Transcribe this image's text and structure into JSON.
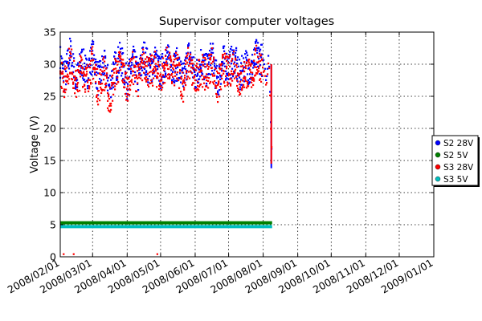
{
  "chart_data": {
    "type": "scatter",
    "title": "Supervisor computer voltages",
    "xlabel": "",
    "ylabel": "Voltage (V)",
    "ylim": [
      0,
      35
    ],
    "xlim": [
      "2008-02-01",
      "2009-01-01"
    ],
    "grid": true,
    "legend_position": "right-outside",
    "yticks": [
      "0",
      "5",
      "10",
      "15",
      "20",
      "25",
      "30",
      "35"
    ],
    "xticks": [
      {
        "date": "2008-02-01",
        "label": "2008/02/01"
      },
      {
        "date": "2008-03-01",
        "label": "2008/03/01"
      },
      {
        "date": "2008-04-01",
        "label": "2008/04/01"
      },
      {
        "date": "2008-05-01",
        "label": "2008/05/01"
      },
      {
        "date": "2008-06-01",
        "label": "2008/06/01"
      },
      {
        "date": "2008-07-01",
        "label": "2008/07/01"
      },
      {
        "date": "2008-08-01",
        "label": "2008/08/01"
      },
      {
        "date": "2008-09-01",
        "label": "2008/09/01"
      },
      {
        "date": "2008-10-01",
        "label": "2008/10/01"
      },
      {
        "date": "2008-11-01",
        "label": "2008/11/01"
      },
      {
        "date": "2008-12-01",
        "label": "2008/12/01"
      },
      {
        "date": "2009-01-01",
        "label": "2009/01/01"
      }
    ],
    "series": [
      {
        "name": "S2 28V",
        "color": "#0000ff",
        "x": [
          "2008-02-01",
          "2008-02-05",
          "2008-02-10",
          "2008-02-15",
          "2008-02-20",
          "2008-02-25",
          "2008-03-01",
          "2008-03-06",
          "2008-03-11",
          "2008-03-16",
          "2008-03-21",
          "2008-03-26",
          "2008-04-01",
          "2008-04-06",
          "2008-04-11",
          "2008-04-16",
          "2008-04-21",
          "2008-04-26",
          "2008-05-01",
          "2008-05-06",
          "2008-05-11",
          "2008-05-16",
          "2008-05-21",
          "2008-05-26",
          "2008-06-01",
          "2008-06-06",
          "2008-06-11",
          "2008-06-16",
          "2008-06-21",
          "2008-06-26",
          "2008-07-01",
          "2008-07-06",
          "2008-07-11",
          "2008-07-16",
          "2008-07-21",
          "2008-07-26",
          "2008-08-01",
          "2008-08-04",
          "2008-08-06",
          "2008-08-08",
          "2008-08-09"
        ],
        "y": [
          30.5,
          28.0,
          32.0,
          27.0,
          30.5,
          28.5,
          31.5,
          27.5,
          30.0,
          26.5,
          29.5,
          31.0,
          27.0,
          30.5,
          28.0,
          31.5,
          29.0,
          30.5,
          28.5,
          31.0,
          29.5,
          30.0,
          27.5,
          31.5,
          28.0,
          30.5,
          29.0,
          31.5,
          27.0,
          30.5,
          29.5,
          31.0,
          28.0,
          30.0,
          29.0,
          31.5,
          30.5,
          27.5,
          32.0,
          20.0,
          13.8
        ]
      },
      {
        "name": "S2 5V",
        "color": "#008000",
        "x": [
          "2008-02-01",
          "2008-08-09"
        ],
        "y": [
          5.3,
          5.3
        ]
      },
      {
        "name": "S3 28V",
        "color": "#ff0000",
        "x": [
          "2008-02-01",
          "2008-02-05",
          "2008-02-10",
          "2008-02-15",
          "2008-02-20",
          "2008-02-25",
          "2008-03-01",
          "2008-03-06",
          "2008-03-11",
          "2008-03-16",
          "2008-03-21",
          "2008-03-26",
          "2008-04-01",
          "2008-04-06",
          "2008-04-11",
          "2008-04-16",
          "2008-04-21",
          "2008-04-26",
          "2008-05-01",
          "2008-05-06",
          "2008-05-11",
          "2008-05-16",
          "2008-05-21",
          "2008-05-26",
          "2008-06-01",
          "2008-06-06",
          "2008-06-11",
          "2008-06-16",
          "2008-06-21",
          "2008-06-26",
          "2008-07-01",
          "2008-07-06",
          "2008-07-11",
          "2008-07-16",
          "2008-07-21",
          "2008-07-26",
          "2008-08-01",
          "2008-08-04",
          "2008-08-06",
          "2008-08-08",
          "2008-08-09"
        ],
        "y": [
          29.5,
          27.0,
          31.0,
          26.5,
          29.5,
          27.5,
          30.5,
          26.0,
          29.0,
          24.0,
          28.5,
          30.0,
          26.5,
          29.5,
          27.5,
          30.5,
          28.5,
          29.5,
          27.5,
          30.5,
          28.5,
          29.5,
          26.5,
          30.5,
          27.0,
          29.5,
          28.0,
          30.5,
          26.0,
          29.5,
          28.5,
          30.5,
          27.0,
          29.0,
          28.0,
          30.5,
          29.5,
          26.5,
          31.0,
          19.0,
          14.5
        ]
      },
      {
        "name": "S3 5V",
        "color": "#00bfbf",
        "x": [
          "2008-02-01",
          "2008-08-09"
        ],
        "y": [
          4.7,
          4.7
        ]
      }
    ]
  }
}
